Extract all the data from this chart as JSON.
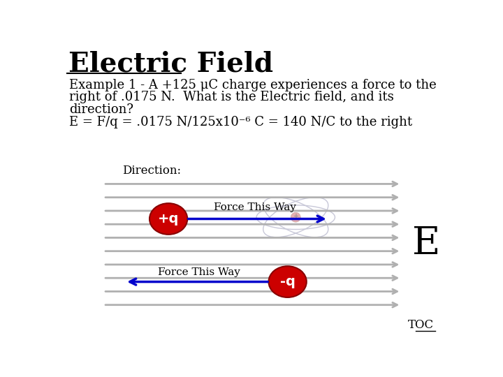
{
  "title": "Electric Field",
  "bg_color": "#ffffff",
  "text_color": "#000000",
  "example_text_line1": "Example 1 - A +125 μC charge experiences a force to the",
  "example_text_line2": "right of .0175 N.  What is the Electric field, and its",
  "example_text_line3": "direction?",
  "example_text_line4": "E = F/q = .0175 N/125x10⁻⁶ C = 140 N/C to the right",
  "direction_label": "Direction:",
  "force_this_way": "Force This Way",
  "E_label": "E",
  "TOC_label": "TOC",
  "gray_arrow_color": "#b0b0b0",
  "blue_arrow_color": "#0000cc",
  "red_circle_color": "#cc0000",
  "atom_ellipse_color": "#c8c8d8",
  "plus_q_label": "+q",
  "minus_q_label": "-q"
}
